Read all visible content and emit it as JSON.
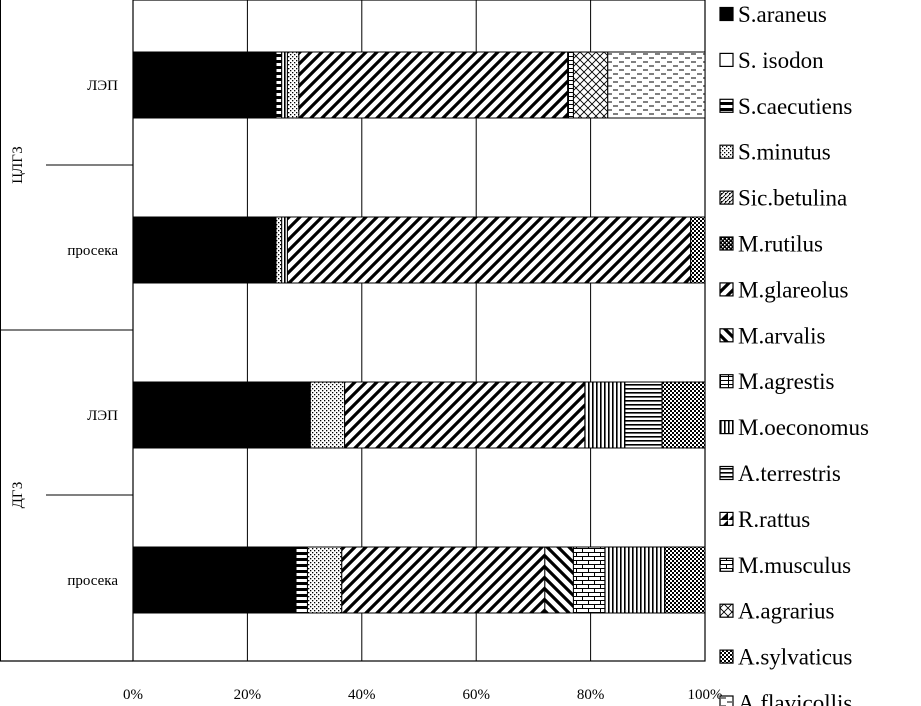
{
  "chart_data": {
    "type": "bar",
    "stacked": "percent",
    "orientation": "horizontal",
    "title": "",
    "xlabel": "",
    "ylabel": "",
    "xlim": [
      0,
      100
    ],
    "x_ticks": [
      "0%",
      "20%",
      "40%",
      "60%",
      "80%",
      "100%"
    ],
    "grid": "vertical",
    "legend_position": "right",
    "groups": [
      {
        "label": "ЦЛГЗ",
        "categories": [
          "ЛЭП",
          "просека"
        ]
      },
      {
        "label": "ДГЗ",
        "categories": [
          "ЛЭП",
          "просека"
        ]
      }
    ],
    "bars": [
      {
        "group": "ЦЛГЗ",
        "category": "ЛЭП",
        "segments": [
          {
            "series": "S.araneus",
            "value": 25
          },
          {
            "series": "S.caecutiens",
            "value": 1
          },
          {
            "series": "M.oeconomus",
            "value": 1
          },
          {
            "series": "S.minutus",
            "value": 2
          },
          {
            "series": "M.glareolus",
            "value": 47
          },
          {
            "series": "M.agrestis",
            "value": 1
          },
          {
            "series": "A.agrarius",
            "value": 6
          },
          {
            "series": "A.flavicollis",
            "value": 17
          }
        ]
      },
      {
        "group": "ЦЛГЗ",
        "category": "просека",
        "segments": [
          {
            "series": "S.araneus",
            "value": 25
          },
          {
            "series": "S.minutus",
            "value": 1
          },
          {
            "series": "M.oeconomus",
            "value": 1
          },
          {
            "series": "M.glareolus",
            "value": 70.5
          },
          {
            "series": "A.sylvaticus",
            "value": 2.5
          }
        ]
      },
      {
        "group": "ДГЗ",
        "category": "ЛЭП",
        "segments": [
          {
            "series": "S.araneus",
            "value": 31
          },
          {
            "series": "S.minutus",
            "value": 6
          },
          {
            "series": "M.glareolus",
            "value": 42
          },
          {
            "series": "M.oeconomus",
            "value": 7
          },
          {
            "series": "A.terrestris",
            "value": 6.5
          },
          {
            "series": "A.sylvaticus",
            "value": 7.5
          }
        ]
      },
      {
        "group": "ДГЗ",
        "category": "просека",
        "segments": [
          {
            "series": "S.araneus",
            "value": 28.5
          },
          {
            "series": "S.caecutiens",
            "value": 2
          },
          {
            "series": "S.minutus",
            "value": 6
          },
          {
            "series": "M.glareolus",
            "value": 35.5
          },
          {
            "series": "M.arvalis",
            "value": 5
          },
          {
            "series": "M.musculus",
            "value": 5.5
          },
          {
            "series": "M.oeconomus",
            "value": 10.5
          },
          {
            "series": "A.sylvaticus",
            "value": 7
          }
        ]
      }
    ],
    "legend": [
      {
        "name": "S.araneus",
        "pattern": "solid-black"
      },
      {
        "name": "S.  isodon",
        "pattern": "white"
      },
      {
        "name": "S.caecutiens",
        "pattern": "horizontal-thick"
      },
      {
        "name": "S.minutus",
        "pattern": "dots"
      },
      {
        "name": "Sic.betulina",
        "pattern": "diagonal-fine"
      },
      {
        "name": "M.rutilus",
        "pattern": "checker-dark"
      },
      {
        "name": "M.glareolus",
        "pattern": "diagonal-wide"
      },
      {
        "name": "M.arvalis",
        "pattern": "backdiagonal-wide"
      },
      {
        "name": "M.agrestis",
        "pattern": "boxes"
      },
      {
        "name": "M.oeconomus",
        "pattern": "vertical"
      },
      {
        "name": "A.terrestris",
        "pattern": "horizontal"
      },
      {
        "name": "R.rattus",
        "pattern": "wedge"
      },
      {
        "name": "M.musculus",
        "pattern": "bricks"
      },
      {
        "name": "A.agrarius",
        "pattern": "diagcross"
      },
      {
        "name": "A.sylvaticus",
        "pattern": "checker"
      },
      {
        "name": "A.flavicollis",
        "pattern": "dashes"
      }
    ]
  }
}
